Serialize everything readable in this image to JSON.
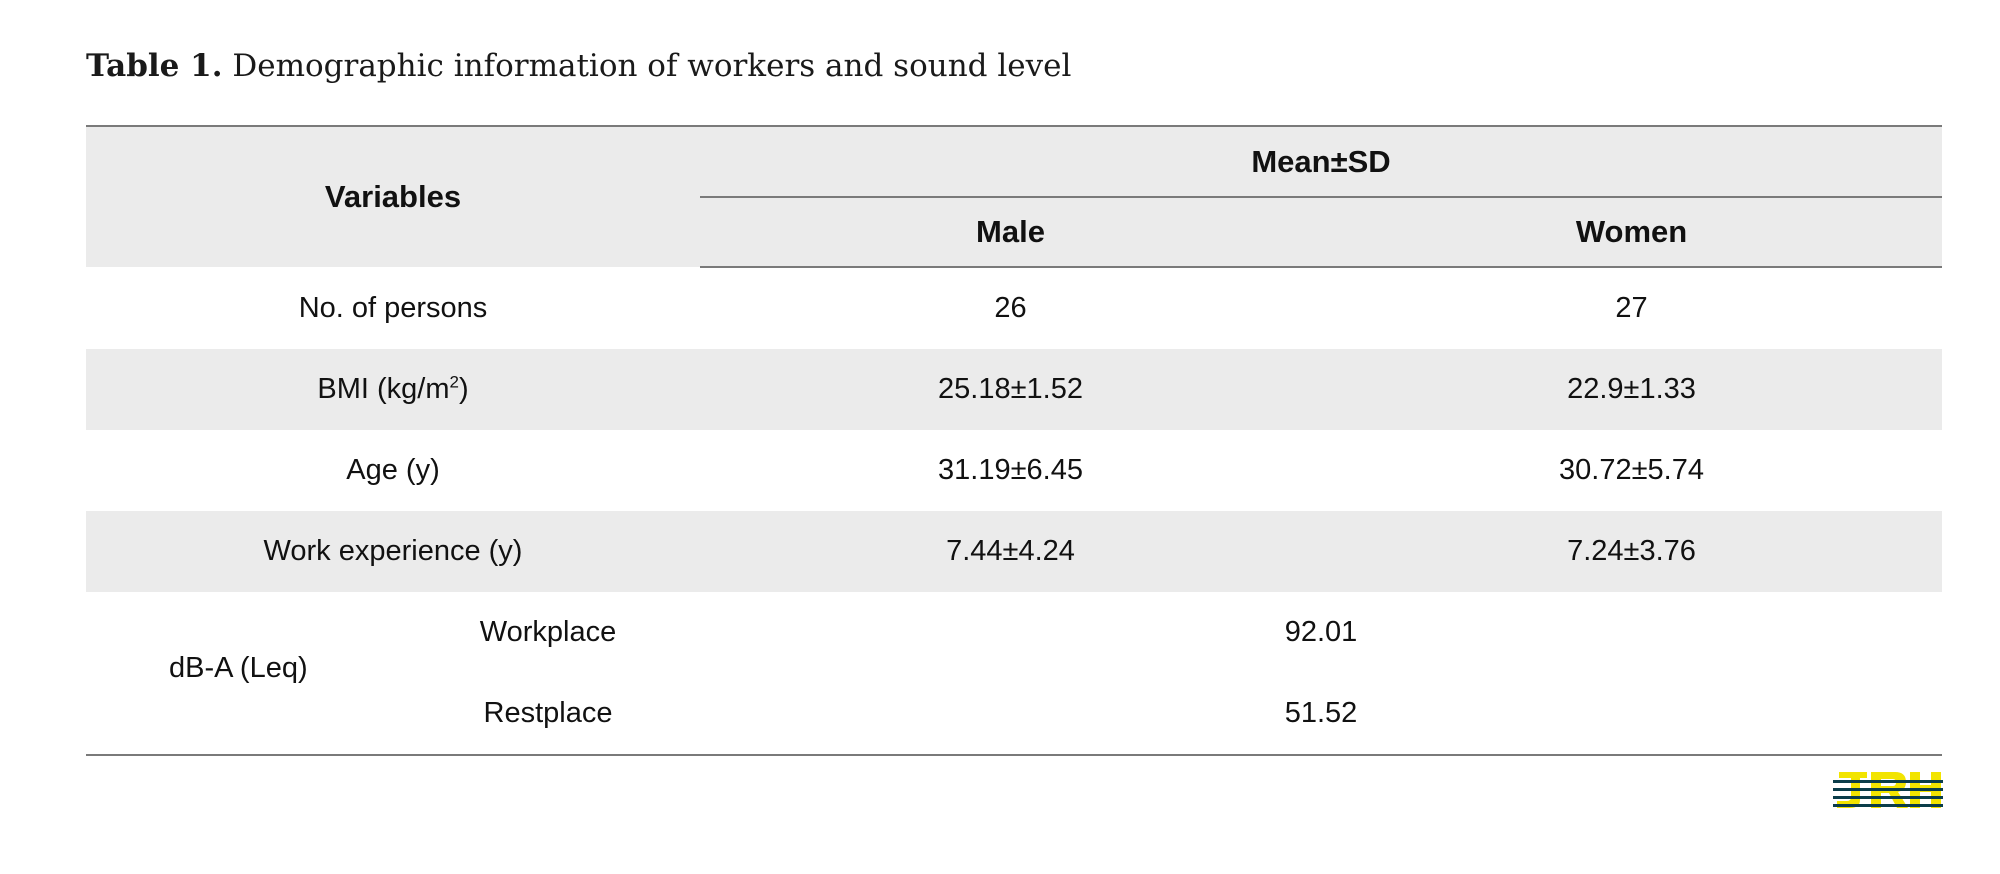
{
  "caption": {
    "label": "Table 1.",
    "text": "Demographic information of workers and sound level"
  },
  "table": {
    "header": {
      "variables": "Variables",
      "group": "Mean±SD",
      "male": "Male",
      "women": "Women"
    },
    "rows": [
      {
        "label": "No. of persons",
        "male": "26",
        "women": "27"
      },
      {
        "label_main": "BMI (kg/m",
        "label_sup": "2",
        "label_end": ")",
        "male": "25.18±1.52",
        "women": "22.9±1.33"
      },
      {
        "label": "Age (y)",
        "male": "31.19±6.45",
        "women": "30.72±5.74"
      },
      {
        "label": "Work experience (y)",
        "male": "7.44±4.24",
        "women": "7.24±3.76"
      }
    ],
    "sound": {
      "label": "dB-A (Leq)",
      "sub": [
        {
          "label": "Workplace",
          "value": "92.01"
        },
        {
          "label": "Restplace",
          "value": "51.52"
        }
      ]
    }
  },
  "logo": {
    "text": "JRH",
    "colors": {
      "fill": "#f2e400",
      "stripe": "#0b3d4a"
    }
  }
}
